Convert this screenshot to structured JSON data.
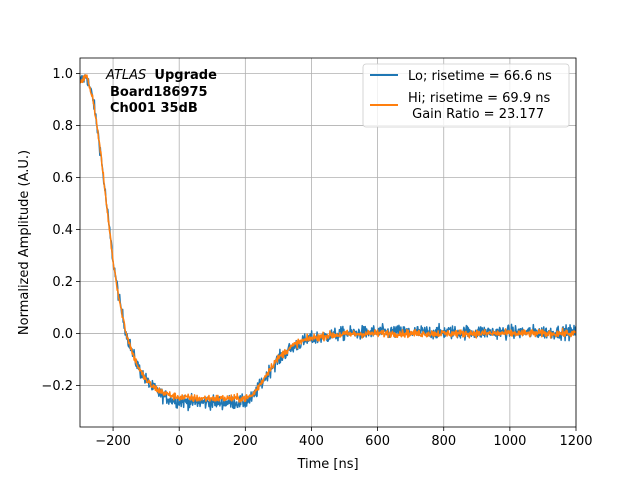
{
  "chart_data": {
    "type": "line",
    "title": "",
    "xlabel": "Time [ns]",
    "ylabel": "Normalized Amplitude (A.U.)",
    "xlim": [
      -300,
      1200
    ],
    "ylim": [
      -0.36,
      1.06
    ],
    "xticks": [
      -200,
      0,
      200,
      400,
      600,
      800,
      1000,
      1200
    ],
    "xtick_labels": [
      "−200",
      "0",
      "200",
      "400",
      "600",
      "800",
      "1000",
      "1200"
    ],
    "yticks": [
      -0.2,
      0.0,
      0.2,
      0.4,
      0.6,
      0.8,
      1.0
    ],
    "ytick_labels": [
      "−0.2",
      "0.0",
      "0.2",
      "0.4",
      "0.6",
      "0.8",
      "1.0"
    ],
    "grid": true,
    "legend_position": "top-right",
    "annotation": {
      "experiment": "ATLAS",
      "tag": "Upgrade",
      "board": "Board186975",
      "channel": "Ch001 35dB"
    },
    "series": [
      {
        "name": "Lo; risetime = 66.6 ns",
        "color": "#1f77b4",
        "noise": 0.013,
        "x": [
          -300,
          -280,
          -260,
          -240,
          -220,
          -200,
          -180,
          -160,
          -140,
          -120,
          -100,
          -80,
          -60,
          -40,
          -20,
          0,
          50,
          100,
          150,
          200,
          220,
          240,
          260,
          280,
          300,
          330,
          360,
          400,
          450,
          500,
          600,
          700,
          800,
          900,
          1000,
          1100,
          1200
        ],
        "y": [
          0.97,
          0.99,
          0.9,
          0.72,
          0.5,
          0.28,
          0.12,
          0.0,
          -0.08,
          -0.14,
          -0.18,
          -0.21,
          -0.23,
          -0.245,
          -0.255,
          -0.26,
          -0.265,
          -0.265,
          -0.265,
          -0.265,
          -0.25,
          -0.21,
          -0.17,
          -0.13,
          -0.1,
          -0.065,
          -0.04,
          -0.02,
          -0.01,
          0.0,
          0.005,
          0.005,
          0.005,
          0.005,
          0.005,
          0.005,
          0.005
        ]
      },
      {
        "name": "Hi; risetime = 69.9 ns\n Gain Ratio = 23.177",
        "color": "#ff7f0e",
        "noise": 0.007,
        "x": [
          -300,
          -280,
          -260,
          -240,
          -220,
          -200,
          -180,
          -160,
          -140,
          -120,
          -100,
          -80,
          -60,
          -40,
          -20,
          0,
          50,
          100,
          150,
          200,
          220,
          240,
          260,
          280,
          300,
          330,
          360,
          400,
          450,
          500,
          600,
          700,
          800,
          900,
          1000,
          1100,
          1200
        ],
        "y": [
          0.97,
          0.99,
          0.9,
          0.72,
          0.5,
          0.28,
          0.12,
          0.0,
          -0.08,
          -0.14,
          -0.18,
          -0.205,
          -0.22,
          -0.232,
          -0.24,
          -0.245,
          -0.25,
          -0.25,
          -0.25,
          -0.25,
          -0.24,
          -0.205,
          -0.165,
          -0.125,
          -0.095,
          -0.06,
          -0.035,
          -0.018,
          -0.008,
          -0.003,
          0.0,
          0.0,
          0.0,
          0.0,
          0.0,
          0.0,
          0.0
        ]
      }
    ]
  }
}
